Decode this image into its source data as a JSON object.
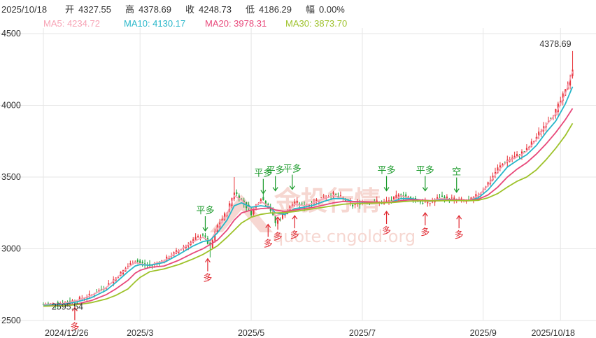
{
  "header": {
    "date": "2025/10/18",
    "open_label": "开",
    "open": "4327.55",
    "high_label": "高",
    "high": "4378.69",
    "close_label": "收",
    "close": "4248.73",
    "low_label": "低",
    "low": "4186.29",
    "amp_label": "幅",
    "amp": "0.00%"
  },
  "ma_legend": [
    {
      "label": "MA5: 4234.72",
      "color": "#f7a3b5"
    },
    {
      "label": "MA10: 4130.17",
      "color": "#27b6c9"
    },
    {
      "label": "MA20: 3978.31",
      "color": "#e8487a"
    },
    {
      "label": "MA30: 3873.70",
      "color": "#9ec22a"
    }
  ],
  "watermark": {
    "brand": "金投行情",
    "url": "quote.cngold.org",
    "color": "#f6d3cd"
  },
  "chart_data": {
    "type": "candlestick",
    "ylim": [
      2500,
      4500
    ],
    "y_ticks": [
      "2500",
      "3000",
      "3500",
      "4000",
      "4500"
    ],
    "x_ticks": [
      {
        "label": "2024/12/26",
        "t": 0
      },
      {
        "label": "2025/3",
        "t": 40
      },
      {
        "label": "2025/5",
        "t": 86
      },
      {
        "label": "2025/7",
        "t": 132
      },
      {
        "label": "2025/9",
        "t": 182
      },
      {
        "label": "2025/10/18",
        "t": 214
      }
    ],
    "t_max": 220,
    "max_label": {
      "text": "4378.69",
      "t": 219,
      "value": 4378.69
    },
    "min_label": {
      "text": "2595.54",
      "t": 4,
      "value": 2595.54
    },
    "price_path": [
      [
        0,
        2612
      ],
      [
        8,
        2622
      ],
      [
        14,
        2645
      ],
      [
        20,
        2680
      ],
      [
        26,
        2740
      ],
      [
        30,
        2800
      ],
      [
        35,
        2880
      ],
      [
        38,
        2920
      ],
      [
        40,
        2900
      ],
      [
        44,
        2880
      ],
      [
        50,
        2920
      ],
      [
        56,
        2990
      ],
      [
        62,
        3060
      ],
      [
        66,
        3100
      ],
      [
        69,
        3010
      ],
      [
        72,
        3160
      ],
      [
        76,
        3260
      ],
      [
        79,
        3400
      ],
      [
        82,
        3340
      ],
      [
        86,
        3250
      ],
      [
        90,
        3360
      ],
      [
        94,
        3270
      ],
      [
        96,
        3180
      ],
      [
        100,
        3250
      ],
      [
        104,
        3330
      ],
      [
        108,
        3290
      ],
      [
        112,
        3330
      ],
      [
        116,
        3360
      ],
      [
        120,
        3380
      ],
      [
        124,
        3350
      ],
      [
        128,
        3300
      ],
      [
        132,
        3330
      ],
      [
        136,
        3330
      ],
      [
        140,
        3320
      ],
      [
        144,
        3340
      ],
      [
        148,
        3380
      ],
      [
        152,
        3350
      ],
      [
        156,
        3330
      ],
      [
        160,
        3320
      ],
      [
        164,
        3360
      ],
      [
        168,
        3350
      ],
      [
        172,
        3340
      ],
      [
        176,
        3330
      ],
      [
        180,
        3380
      ],
      [
        184,
        3460
      ],
      [
        188,
        3560
      ],
      [
        192,
        3620
      ],
      [
        196,
        3650
      ],
      [
        200,
        3690
      ],
      [
        204,
        3780
      ],
      [
        208,
        3880
      ],
      [
        212,
        3960
      ],
      [
        216,
        4100
      ],
      [
        219,
        4249
      ]
    ],
    "ma_lines": [
      {
        "name": "MA5",
        "color": "#f7a3b5",
        "points": [
          [
            0,
            2612
          ],
          [
            8,
            2618
          ],
          [
            14,
            2640
          ],
          [
            20,
            2675
          ],
          [
            26,
            2730
          ],
          [
            30,
            2790
          ],
          [
            35,
            2870
          ],
          [
            38,
            2905
          ],
          [
            40,
            2895
          ],
          [
            44,
            2885
          ],
          [
            50,
            2915
          ],
          [
            56,
            2985
          ],
          [
            62,
            3050
          ],
          [
            66,
            3080
          ],
          [
            69,
            3050
          ],
          [
            72,
            3140
          ],
          [
            76,
            3240
          ],
          [
            79,
            3370
          ],
          [
            82,
            3340
          ],
          [
            86,
            3270
          ],
          [
            90,
            3330
          ],
          [
            94,
            3290
          ],
          [
            96,
            3230
          ],
          [
            100,
            3250
          ],
          [
            104,
            3310
          ],
          [
            108,
            3300
          ],
          [
            112,
            3320
          ],
          [
            116,
            3350
          ],
          [
            120,
            3370
          ],
          [
            124,
            3350
          ],
          [
            128,
            3320
          ],
          [
            132,
            3330
          ],
          [
            136,
            3330
          ],
          [
            140,
            3320
          ],
          [
            144,
            3330
          ],
          [
            148,
            3370
          ],
          [
            152,
            3350
          ],
          [
            156,
            3335
          ],
          [
            160,
            3330
          ],
          [
            164,
            3350
          ],
          [
            168,
            3345
          ],
          [
            172,
            3340
          ],
          [
            176,
            3335
          ],
          [
            180,
            3370
          ],
          [
            184,
            3440
          ],
          [
            188,
            3540
          ],
          [
            192,
            3610
          ],
          [
            196,
            3640
          ],
          [
            200,
            3680
          ],
          [
            204,
            3760
          ],
          [
            208,
            3860
          ],
          [
            212,
            3940
          ],
          [
            216,
            4080
          ],
          [
            219,
            4235
          ]
        ]
      },
      {
        "name": "MA10",
        "color": "#27b6c9",
        "points": [
          [
            0,
            2605
          ],
          [
            8,
            2612
          ],
          [
            14,
            2630
          ],
          [
            20,
            2660
          ],
          [
            26,
            2710
          ],
          [
            30,
            2765
          ],
          [
            35,
            2840
          ],
          [
            38,
            2880
          ],
          [
            40,
            2890
          ],
          [
            44,
            2885
          ],
          [
            50,
            2905
          ],
          [
            56,
            2960
          ],
          [
            62,
            3020
          ],
          [
            66,
            3050
          ],
          [
            69,
            3060
          ],
          [
            72,
            3110
          ],
          [
            76,
            3200
          ],
          [
            79,
            3300
          ],
          [
            82,
            3320
          ],
          [
            86,
            3290
          ],
          [
            90,
            3300
          ],
          [
            94,
            3290
          ],
          [
            96,
            3250
          ],
          [
            100,
            3240
          ],
          [
            104,
            3280
          ],
          [
            108,
            3290
          ],
          [
            112,
            3305
          ],
          [
            116,
            3330
          ],
          [
            120,
            3350
          ],
          [
            124,
            3350
          ],
          [
            128,
            3330
          ],
          [
            132,
            3325
          ],
          [
            136,
            3325
          ],
          [
            140,
            3322
          ],
          [
            144,
            3325
          ],
          [
            148,
            3350
          ],
          [
            152,
            3350
          ],
          [
            156,
            3340
          ],
          [
            160,
            3332
          ],
          [
            164,
            3340
          ],
          [
            168,
            3342
          ],
          [
            172,
            3340
          ],
          [
            176,
            3336
          ],
          [
            180,
            3355
          ],
          [
            184,
            3410
          ],
          [
            188,
            3490
          ],
          [
            192,
            3570
          ],
          [
            196,
            3615
          ],
          [
            200,
            3655
          ],
          [
            204,
            3720
          ],
          [
            208,
            3810
          ],
          [
            212,
            3890
          ],
          [
            216,
            4010
          ],
          [
            219,
            4130
          ]
        ]
      },
      {
        "name": "MA20",
        "color": "#e8487a",
        "points": [
          [
            0,
            2600
          ],
          [
            8,
            2605
          ],
          [
            14,
            2615
          ],
          [
            20,
            2640
          ],
          [
            26,
            2680
          ],
          [
            30,
            2720
          ],
          [
            35,
            2780
          ],
          [
            38,
            2830
          ],
          [
            40,
            2850
          ],
          [
            44,
            2870
          ],
          [
            50,
            2880
          ],
          [
            56,
            2920
          ],
          [
            62,
            2970
          ],
          [
            66,
            3000
          ],
          [
            69,
            3030
          ],
          [
            72,
            3060
          ],
          [
            76,
            3130
          ],
          [
            79,
            3200
          ],
          [
            82,
            3250
          ],
          [
            86,
            3270
          ],
          [
            90,
            3280
          ],
          [
            94,
            3285
          ],
          [
            96,
            3270
          ],
          [
            100,
            3260
          ],
          [
            104,
            3270
          ],
          [
            108,
            3280
          ],
          [
            112,
            3290
          ],
          [
            116,
            3305
          ],
          [
            120,
            3320
          ],
          [
            124,
            3330
          ],
          [
            128,
            3330
          ],
          [
            132,
            3328
          ],
          [
            136,
            3325
          ],
          [
            140,
            3324
          ],
          [
            144,
            3325
          ],
          [
            148,
            3335
          ],
          [
            152,
            3342
          ],
          [
            156,
            3340
          ],
          [
            160,
            3336
          ],
          [
            164,
            3336
          ],
          [
            168,
            3340
          ],
          [
            172,
            3340
          ],
          [
            176,
            3338
          ],
          [
            180,
            3345
          ],
          [
            184,
            3375
          ],
          [
            188,
            3430
          ],
          [
            192,
            3500
          ],
          [
            196,
            3555
          ],
          [
            200,
            3600
          ],
          [
            204,
            3660
          ],
          [
            208,
            3730
          ],
          [
            212,
            3810
          ],
          [
            216,
            3900
          ],
          [
            219,
            3978
          ]
        ]
      },
      {
        "name": "MA30",
        "color": "#9ec22a",
        "points": [
          [
            0,
            2600
          ],
          [
            8,
            2603
          ],
          [
            14,
            2610
          ],
          [
            20,
            2625
          ],
          [
            26,
            2650
          ],
          [
            30,
            2675
          ],
          [
            35,
            2720
          ],
          [
            38,
            2770
          ],
          [
            40,
            2800
          ],
          [
            44,
            2840
          ],
          [
            50,
            2860
          ],
          [
            56,
            2890
          ],
          [
            62,
            2930
          ],
          [
            66,
            2960
          ],
          [
            69,
            2990
          ],
          [
            72,
            3020
          ],
          [
            76,
            3080
          ],
          [
            79,
            3130
          ],
          [
            82,
            3180
          ],
          [
            86,
            3220
          ],
          [
            90,
            3240
          ],
          [
            94,
            3250
          ],
          [
            96,
            3250
          ],
          [
            100,
            3252
          ],
          [
            104,
            3260
          ],
          [
            108,
            3270
          ],
          [
            112,
            3280
          ],
          [
            116,
            3290
          ],
          [
            120,
            3300
          ],
          [
            124,
            3310
          ],
          [
            128,
            3315
          ],
          [
            132,
            3316
          ],
          [
            136,
            3318
          ],
          [
            140,
            3320
          ],
          [
            144,
            3322
          ],
          [
            148,
            3328
          ],
          [
            152,
            3332
          ],
          [
            156,
            3334
          ],
          [
            160,
            3334
          ],
          [
            164,
            3334
          ],
          [
            168,
            3336
          ],
          [
            172,
            3336
          ],
          [
            176,
            3335
          ],
          [
            180,
            3338
          ],
          [
            184,
            3355
          ],
          [
            188,
            3385
          ],
          [
            192,
            3430
          ],
          [
            196,
            3470
          ],
          [
            200,
            3500
          ],
          [
            204,
            3550
          ],
          [
            208,
            3620
          ],
          [
            212,
            3700
          ],
          [
            216,
            3790
          ],
          [
            219,
            3874
          ]
        ]
      }
    ],
    "signals": [
      {
        "text": "多",
        "t": 13,
        "value": 2620,
        "color": "#e0272f",
        "pos": "below"
      },
      {
        "text": "平多",
        "t": 67,
        "value": 3100,
        "color": "#1a9a2a",
        "pos": "above"
      },
      {
        "text": "多",
        "t": 68,
        "value": 2960,
        "color": "#e0272f",
        "pos": "below"
      },
      {
        "text": "平多",
        "t": 91,
        "value": 3360,
        "color": "#1a9a2a",
        "pos": "above"
      },
      {
        "text": "平多",
        "t": 96,
        "value": 3380,
        "color": "#1a9a2a",
        "pos": "above"
      },
      {
        "text": "平多",
        "t": 103,
        "value": 3390,
        "color": "#1a9a2a",
        "pos": "above"
      },
      {
        "text": "多",
        "t": 93,
        "value": 3200,
        "color": "#e0272f",
        "pos": "below"
      },
      {
        "text": "多",
        "t": 97,
        "value": 3250,
        "color": "#e0272f",
        "pos": "below"
      },
      {
        "text": "多",
        "t": 104,
        "value": 3260,
        "color": "#e0272f",
        "pos": "below"
      },
      {
        "text": "平多",
        "t": 142,
        "value": 3380,
        "color": "#1a9a2a",
        "pos": "above"
      },
      {
        "text": "多",
        "t": 142,
        "value": 3290,
        "color": "#e0272f",
        "pos": "below"
      },
      {
        "text": "平多",
        "t": 158,
        "value": 3380,
        "color": "#1a9a2a",
        "pos": "above"
      },
      {
        "text": "多",
        "t": 158,
        "value": 3280,
        "color": "#e0272f",
        "pos": "below"
      },
      {
        "text": "空",
        "t": 171,
        "value": 3370,
        "color": "#1a9a2a",
        "pos": "above"
      },
      {
        "text": "多",
        "t": 172,
        "value": 3260,
        "color": "#e0272f",
        "pos": "below"
      }
    ]
  }
}
